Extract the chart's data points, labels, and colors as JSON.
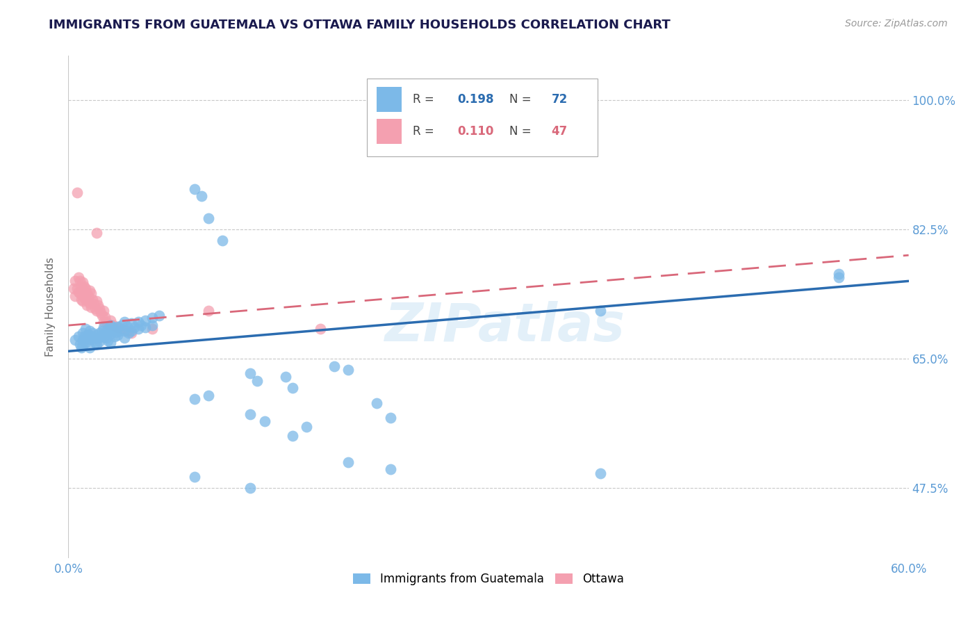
{
  "title": "IMMIGRANTS FROM GUATEMALA VS OTTAWA FAMILY HOUSEHOLDS CORRELATION CHART",
  "source": "Source: ZipAtlas.com",
  "ylabel": "Family Households",
  "ytick_labels": [
    "100.0%",
    "82.5%",
    "65.0%",
    "47.5%"
  ],
  "ytick_values": [
    1.0,
    0.825,
    0.65,
    0.475
  ],
  "xlim": [
    0.0,
    0.6
  ],
  "ylim": [
    0.38,
    1.06
  ],
  "title_color": "#1a1a4e",
  "axis_label_color": "#5b9bd5",
  "blue_color": "#7cb9e8",
  "pink_color": "#f4a0b0",
  "watermark": "ZIPatlas",
  "blue_scatter": [
    [
      0.005,
      0.675
    ],
    [
      0.007,
      0.68
    ],
    [
      0.008,
      0.67
    ],
    [
      0.009,
      0.665
    ],
    [
      0.01,
      0.685
    ],
    [
      0.01,
      0.675
    ],
    [
      0.01,
      0.668
    ],
    [
      0.011,
      0.68
    ],
    [
      0.012,
      0.69
    ],
    [
      0.012,
      0.672
    ],
    [
      0.013,
      0.678
    ],
    [
      0.014,
      0.683
    ],
    [
      0.015,
      0.688
    ],
    [
      0.015,
      0.676
    ],
    [
      0.015,
      0.665
    ],
    [
      0.016,
      0.68
    ],
    [
      0.017,
      0.685
    ],
    [
      0.018,
      0.677
    ],
    [
      0.019,
      0.672
    ],
    [
      0.02,
      0.682
    ],
    [
      0.02,
      0.67
    ],
    [
      0.021,
      0.678
    ],
    [
      0.022,
      0.685
    ],
    [
      0.022,
      0.673
    ],
    [
      0.023,
      0.68
    ],
    [
      0.024,
      0.688
    ],
    [
      0.025,
      0.692
    ],
    [
      0.025,
      0.679
    ],
    [
      0.026,
      0.685
    ],
    [
      0.027,
      0.678
    ],
    [
      0.028,
      0.69
    ],
    [
      0.028,
      0.674
    ],
    [
      0.03,
      0.695
    ],
    [
      0.03,
      0.684
    ],
    [
      0.03,
      0.672
    ],
    [
      0.031,
      0.688
    ],
    [
      0.032,
      0.692
    ],
    [
      0.033,
      0.68
    ],
    [
      0.034,
      0.686
    ],
    [
      0.035,
      0.693
    ],
    [
      0.035,
      0.682
    ],
    [
      0.036,
      0.688
    ],
    [
      0.038,
      0.695
    ],
    [
      0.04,
      0.7
    ],
    [
      0.04,
      0.688
    ],
    [
      0.04,
      0.678
    ],
    [
      0.042,
      0.693
    ],
    [
      0.043,
      0.685
    ],
    [
      0.045,
      0.698
    ],
    [
      0.045,
      0.688
    ],
    [
      0.047,
      0.692
    ],
    [
      0.05,
      0.7
    ],
    [
      0.05,
      0.69
    ],
    [
      0.052,
      0.695
    ],
    [
      0.055,
      0.702
    ],
    [
      0.055,
      0.692
    ],
    [
      0.06,
      0.705
    ],
    [
      0.06,
      0.695
    ],
    [
      0.065,
      0.708
    ],
    [
      0.09,
      0.88
    ],
    [
      0.095,
      0.87
    ],
    [
      0.1,
      0.84
    ],
    [
      0.11,
      0.81
    ],
    [
      0.13,
      0.63
    ],
    [
      0.135,
      0.62
    ],
    [
      0.155,
      0.625
    ],
    [
      0.16,
      0.61
    ],
    [
      0.19,
      0.64
    ],
    [
      0.2,
      0.635
    ],
    [
      0.09,
      0.595
    ],
    [
      0.1,
      0.6
    ],
    [
      0.13,
      0.575
    ],
    [
      0.14,
      0.565
    ],
    [
      0.16,
      0.545
    ],
    [
      0.17,
      0.558
    ],
    [
      0.22,
      0.59
    ],
    [
      0.23,
      0.57
    ],
    [
      0.38,
      0.715
    ],
    [
      0.55,
      0.76
    ],
    [
      0.09,
      0.49
    ],
    [
      0.13,
      0.475
    ],
    [
      0.2,
      0.51
    ],
    [
      0.23,
      0.5
    ],
    [
      0.38,
      0.495
    ],
    [
      0.55,
      0.765
    ]
  ],
  "pink_scatter": [
    [
      0.004,
      0.745
    ],
    [
      0.005,
      0.755
    ],
    [
      0.005,
      0.735
    ],
    [
      0.006,
      0.745
    ],
    [
      0.007,
      0.76
    ],
    [
      0.007,
      0.74
    ],
    [
      0.008,
      0.755
    ],
    [
      0.008,
      0.738
    ],
    [
      0.009,
      0.748
    ],
    [
      0.009,
      0.73
    ],
    [
      0.01,
      0.753
    ],
    [
      0.01,
      0.742
    ],
    [
      0.01,
      0.728
    ],
    [
      0.011,
      0.748
    ],
    [
      0.011,
      0.733
    ],
    [
      0.012,
      0.745
    ],
    [
      0.012,
      0.73
    ],
    [
      0.013,
      0.738
    ],
    [
      0.013,
      0.722
    ],
    [
      0.014,
      0.735
    ],
    [
      0.015,
      0.742
    ],
    [
      0.015,
      0.725
    ],
    [
      0.016,
      0.738
    ],
    [
      0.016,
      0.72
    ],
    [
      0.017,
      0.73
    ],
    [
      0.018,
      0.724
    ],
    [
      0.019,
      0.718
    ],
    [
      0.02,
      0.728
    ],
    [
      0.02,
      0.715
    ],
    [
      0.021,
      0.722
    ],
    [
      0.022,
      0.718
    ],
    [
      0.023,
      0.712
    ],
    [
      0.024,
      0.708
    ],
    [
      0.025,
      0.715
    ],
    [
      0.025,
      0.7
    ],
    [
      0.026,
      0.706
    ],
    [
      0.027,
      0.7
    ],
    [
      0.028,
      0.696
    ],
    [
      0.03,
      0.702
    ],
    [
      0.032,
      0.695
    ],
    [
      0.035,
      0.692
    ],
    [
      0.038,
      0.69
    ],
    [
      0.042,
      0.688
    ],
    [
      0.045,
      0.685
    ],
    [
      0.006,
      0.875
    ],
    [
      0.02,
      0.82
    ],
    [
      0.06,
      0.69
    ],
    [
      0.1,
      0.715
    ],
    [
      0.18,
      0.69
    ]
  ],
  "blue_line": [
    0.0,
    0.66,
    0.6,
    0.755
  ],
  "pink_line": [
    0.0,
    0.695,
    0.6,
    0.79
  ]
}
